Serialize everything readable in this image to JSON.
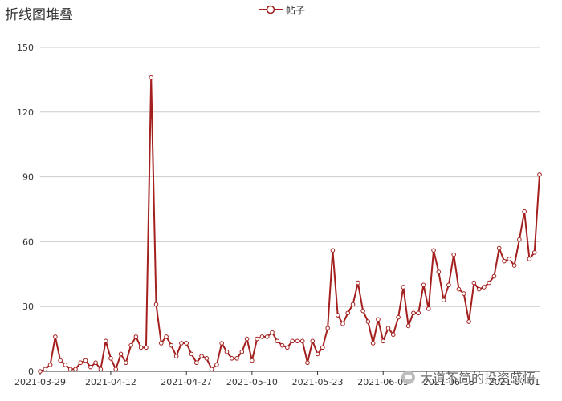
{
  "title": "折线图堆叠",
  "watermark": "大道不简的投资感悟",
  "chart_data": {
    "type": "line",
    "title": "折线图堆叠",
    "legend_position": "top-center",
    "grid": true,
    "ylim": [
      0,
      150
    ],
    "yticks": [
      0,
      30,
      60,
      90,
      120,
      150
    ],
    "xtick_labels": [
      "2021-03-29",
      "2021-04-12",
      "2021-04-27",
      "2021-05-10",
      "2021-05-23",
      "2021-06-05",
      "2021-06-18",
      "2021-07-01"
    ],
    "x_start": "2021-03-29",
    "series": [
      {
        "name": "帖子",
        "color": "#a3201f",
        "marker": "circle",
        "values": [
          0,
          1,
          3,
          16,
          5,
          3,
          1,
          1,
          4,
          5,
          2,
          4,
          1,
          14,
          6,
          1,
          8,
          4,
          12,
          16,
          11,
          11,
          136,
          31,
          13,
          16,
          12,
          7,
          13,
          13,
          8,
          4,
          7,
          6,
          1,
          3,
          13,
          9,
          6,
          6,
          9,
          15,
          5,
          15,
          16,
          16,
          18,
          14,
          12,
          11,
          14,
          14,
          14,
          4,
          14,
          8,
          11,
          20,
          56,
          26,
          22,
          27,
          31,
          41,
          28,
          23,
          13,
          24,
          14,
          20,
          17,
          25,
          39,
          21,
          27,
          27,
          40,
          29,
          56,
          46,
          33,
          40,
          54,
          38,
          36,
          23,
          41,
          38,
          39,
          41,
          44,
          57,
          51,
          52,
          49,
          61,
          74,
          52,
          55,
          91
        ]
      }
    ]
  }
}
